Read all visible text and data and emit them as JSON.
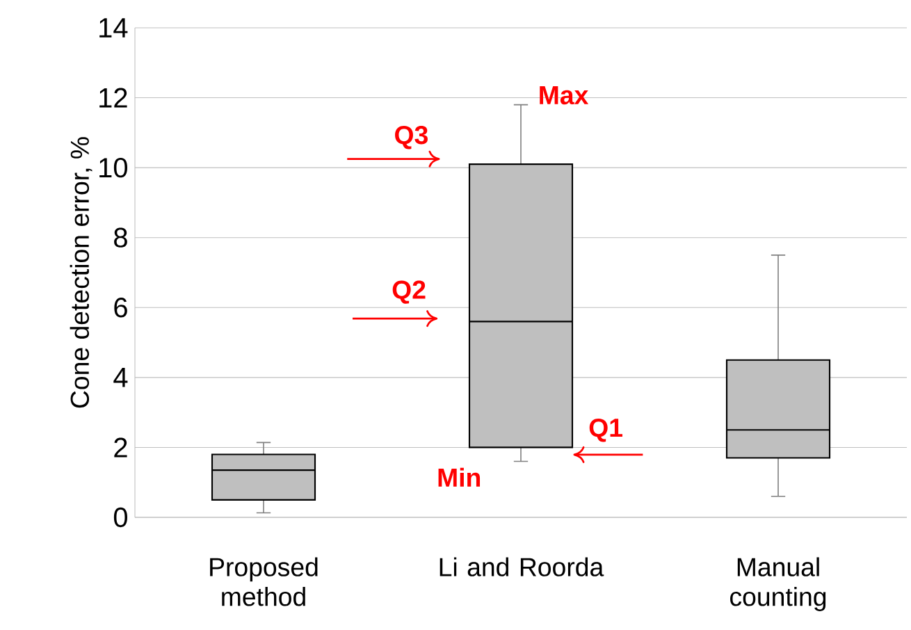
{
  "chart_data": {
    "type": "box",
    "ylabel": "Cone detection error, %",
    "categories": [
      "Proposed method",
      "Li and Roorda",
      "Manual counting"
    ],
    "color": "#bfbfbf",
    "boxes": [
      {
        "low": 0.13,
        "q1": 0.5,
        "median": 1.35,
        "q3": 1.8,
        "high": 2.14
      },
      {
        "low": 1.6,
        "q1": 2.0,
        "median": 5.6,
        "q3": 10.1,
        "high": 11.8
      },
      {
        "low": 0.6,
        "q1": 1.7,
        "median": 2.5,
        "q3": 4.5,
        "high": 7.5
      }
    ],
    "ylim": [
      0,
      14
    ],
    "yticks": [
      0,
      2,
      4,
      6,
      8,
      10,
      12,
      14
    ],
    "grid": "y",
    "annotations": [
      "Max",
      "Q3",
      "Q2",
      "Q1",
      "Min"
    ]
  }
}
